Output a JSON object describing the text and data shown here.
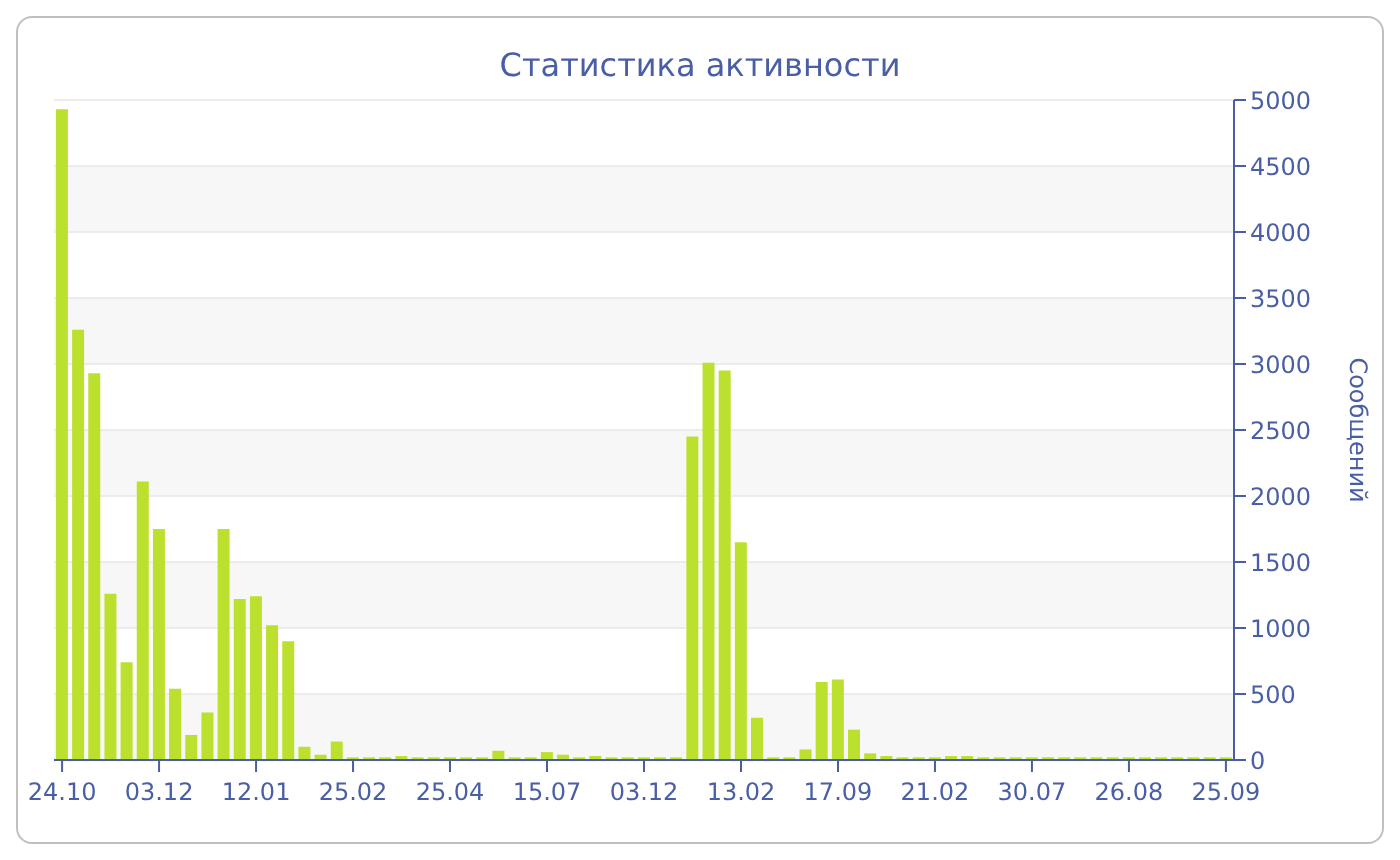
{
  "chart_data": {
    "type": "bar",
    "title": "Статистика активности",
    "ylabel": "Сообщений",
    "categories": [
      "24.10",
      null,
      null,
      null,
      null,
      null,
      "03.12",
      null,
      null,
      null,
      null,
      null,
      "12.01",
      null,
      null,
      null,
      null,
      null,
      "25.02",
      null,
      null,
      null,
      null,
      null,
      "25.04",
      null,
      null,
      null,
      null,
      null,
      "15.07",
      null,
      null,
      null,
      null,
      null,
      "03.12",
      null,
      null,
      null,
      null,
      null,
      "13.02",
      null,
      null,
      null,
      null,
      null,
      "17.09",
      null,
      null,
      null,
      null,
      null,
      "21.02",
      null,
      null,
      null,
      null,
      null,
      "30.07",
      null,
      null,
      null,
      null,
      null,
      "26.08",
      null,
      null,
      null,
      null,
      null,
      "25.09"
    ],
    "values": [
      4930,
      3260,
      2930,
      1260,
      740,
      2110,
      1750,
      540,
      190,
      360,
      1750,
      1220,
      1240,
      1020,
      900,
      100,
      40,
      140,
      20,
      20,
      20,
      30,
      20,
      20,
      20,
      20,
      20,
      70,
      20,
      20,
      60,
      40,
      20,
      30,
      20,
      20,
      20,
      20,
      20,
      2450,
      3010,
      2950,
      1650,
      320,
      20,
      20,
      80,
      590,
      610,
      230,
      50,
      30,
      20,
      20,
      20,
      30,
      30,
      20,
      20,
      20,
      20,
      20,
      20,
      20,
      20,
      20,
      20,
      20,
      20,
      20,
      20,
      20,
      20
    ],
    "color": "#bce02e",
    "ylim": [
      0,
      5000
    ],
    "yticks": [
      0,
      500,
      1000,
      1500,
      2000,
      2500,
      3000,
      3500,
      4000,
      4500,
      5000
    ],
    "grid": "y"
  }
}
